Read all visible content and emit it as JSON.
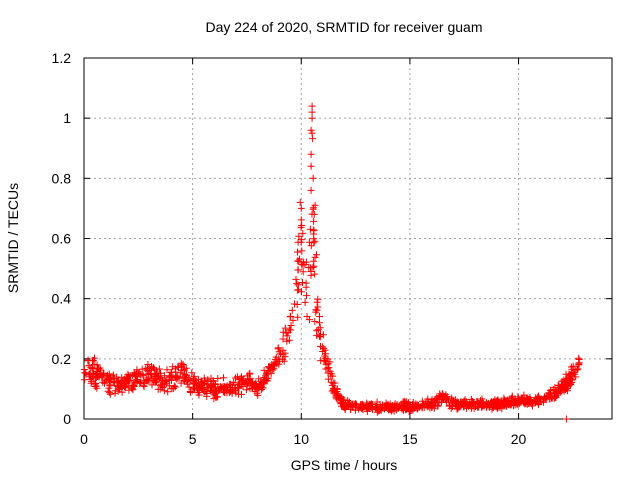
{
  "chart_data": {
    "type": "scatter",
    "title": "Day 224 of 2020, SRMTID for receiver guam",
    "xlabel": "GPS time / hours",
    "ylabel": "SRMTID / TECUs",
    "xlim": [
      0,
      24.3
    ],
    "ylim": [
      0,
      1.2
    ],
    "xticks": [
      0,
      5,
      10,
      15,
      20
    ],
    "yticks": [
      0,
      0.2,
      0.4,
      0.6,
      0.8,
      1,
      1.2
    ],
    "xtick_labels": [
      "0",
      "5",
      "10",
      "15",
      "20"
    ],
    "ytick_labels": [
      "0",
      "0.2",
      "0.4",
      "0.6",
      "0.8",
      "1",
      "1.2"
    ],
    "grid": true,
    "marker": "+",
    "series": [
      {
        "name": "SRMTID",
        "color": "#ff0000",
        "envelope": [
          {
            "x": 0.0,
            "y": 0.17,
            "spread": 0.05
          },
          {
            "x": 0.5,
            "y": 0.15,
            "spread": 0.06
          },
          {
            "x": 1.0,
            "y": 0.13,
            "spread": 0.05
          },
          {
            "x": 1.5,
            "y": 0.11,
            "spread": 0.04
          },
          {
            "x": 2.0,
            "y": 0.12,
            "spread": 0.04
          },
          {
            "x": 3.0,
            "y": 0.14,
            "spread": 0.05
          },
          {
            "x": 4.0,
            "y": 0.13,
            "spread": 0.05
          },
          {
            "x": 4.5,
            "y": 0.16,
            "spread": 0.05
          },
          {
            "x": 5.0,
            "y": 0.12,
            "spread": 0.04
          },
          {
            "x": 6.0,
            "y": 0.1,
            "spread": 0.04
          },
          {
            "x": 7.0,
            "y": 0.11,
            "spread": 0.04
          },
          {
            "x": 7.5,
            "y": 0.13,
            "spread": 0.04
          },
          {
            "x": 8.0,
            "y": 0.1,
            "spread": 0.03
          },
          {
            "x": 8.5,
            "y": 0.15,
            "spread": 0.04
          },
          {
            "x": 9.0,
            "y": 0.2,
            "spread": 0.06
          },
          {
            "x": 9.5,
            "y": 0.3,
            "spread": 0.12
          },
          {
            "x": 10.0,
            "y": 0.55,
            "spread": 0.17
          },
          {
            "x": 10.3,
            "y": 0.4,
            "spread": 0.15
          },
          {
            "x": 10.5,
            "y": 0.7,
            "spread": 0.3
          },
          {
            "x": 10.8,
            "y": 0.3,
            "spread": 0.12
          },
          {
            "x": 11.2,
            "y": 0.18,
            "spread": 0.05
          },
          {
            "x": 11.6,
            "y": 0.08,
            "spread": 0.03
          },
          {
            "x": 12.0,
            "y": 0.05,
            "spread": 0.02
          },
          {
            "x": 13.0,
            "y": 0.04,
            "spread": 0.02
          },
          {
            "x": 14.0,
            "y": 0.04,
            "spread": 0.02
          },
          {
            "x": 15.0,
            "y": 0.04,
            "spread": 0.02
          },
          {
            "x": 16.0,
            "y": 0.05,
            "spread": 0.02
          },
          {
            "x": 16.5,
            "y": 0.07,
            "spread": 0.03
          },
          {
            "x": 17.0,
            "y": 0.05,
            "spread": 0.02
          },
          {
            "x": 18.0,
            "y": 0.05,
            "spread": 0.02
          },
          {
            "x": 19.0,
            "y": 0.05,
            "spread": 0.02
          },
          {
            "x": 20.0,
            "y": 0.06,
            "spread": 0.02
          },
          {
            "x": 21.0,
            "y": 0.06,
            "spread": 0.02
          },
          {
            "x": 22.0,
            "y": 0.1,
            "spread": 0.03
          },
          {
            "x": 22.5,
            "y": 0.15,
            "spread": 0.04
          },
          {
            "x": 22.8,
            "y": 0.18,
            "spread": 0.04
          }
        ],
        "point_count": 1300,
        "notable_points": [
          {
            "x": 10.5,
            "y": 1.04
          },
          {
            "x": 10.5,
            "y": 1.02
          },
          {
            "x": 10.5,
            "y": 1.0
          },
          {
            "x": 10.45,
            "y": 0.96
          },
          {
            "x": 10.5,
            "y": 0.95
          },
          {
            "x": 10.45,
            "y": 0.88
          },
          {
            "x": 10.45,
            "y": 0.84
          },
          {
            "x": 10.55,
            "y": 0.8
          },
          {
            "x": 10.45,
            "y": 0.76
          },
          {
            "x": 9.95,
            "y": 0.72
          },
          {
            "x": 10.0,
            "y": 0.7
          },
          {
            "x": 10.6,
            "y": 0.68
          },
          {
            "x": 22.2,
            "y": 0.0
          }
        ]
      }
    ]
  }
}
